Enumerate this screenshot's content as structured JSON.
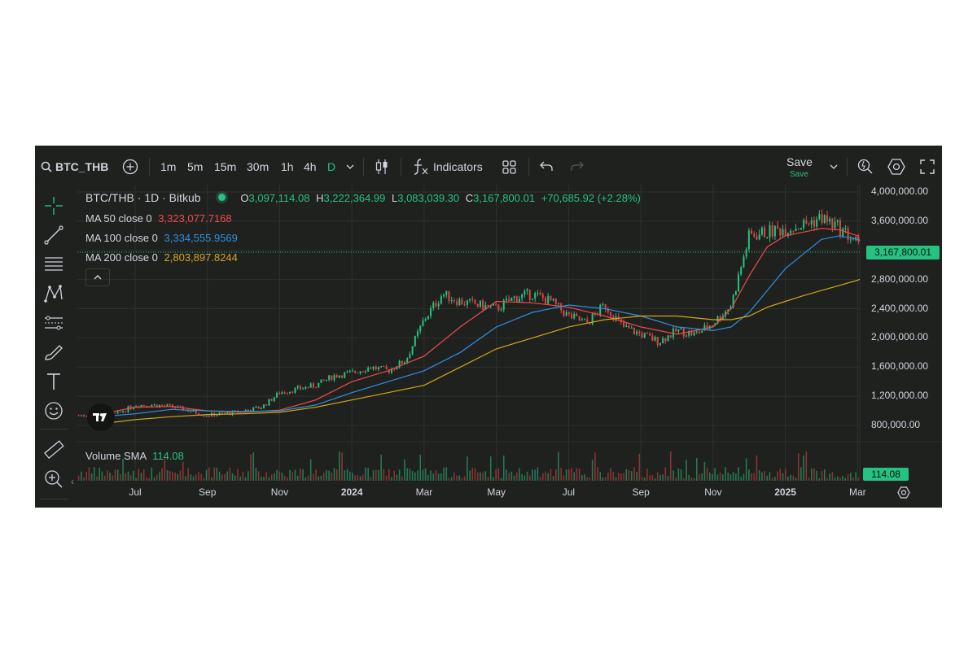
{
  "toolbar": {
    "symbol": "BTC_THB",
    "intervals": [
      "1m",
      "5m",
      "15m",
      "30m",
      "1h",
      "4h",
      "D"
    ],
    "active_interval": "D",
    "indicators_label": "Indicators",
    "save_label": "Save",
    "save_sub_label": "Save"
  },
  "legend": {
    "title": "BTC/THB · 1D · Bitkub",
    "o_key": "O",
    "o_val": "3,097,114.08",
    "h_key": "H",
    "h_val": "3,222,364.99",
    "l_key": "L",
    "l_val": "3,083,039.30",
    "c_key": "C",
    "c_val": "3,167,800.01",
    "change": "+70,685.92 (+2.28%)",
    "ma50_label": "MA 50 close 0",
    "ma50_val": "3,323,077.7168",
    "ma100_label": "MA 100 close 0",
    "ma100_val": "3,334,555.9569",
    "ma200_label": "MA 200 close 0",
    "ma200_val": "2,803,897.8244",
    "volume_label": "Volume SMA",
    "volume_val": "114.08"
  },
  "last_price_label": "3,167,800.01",
  "volume_tag": "114.08",
  "colors": {
    "up": "#26c281",
    "down": "#e0443f",
    "ma50": "#ef4a4a",
    "ma100": "#2f8fdd",
    "ma200": "#d4a41e",
    "bg": "#1f211f"
  },
  "chart_data": {
    "type": "line",
    "instrument": "BTC/THB · 1D · Bitkub",
    "ylim": [
      600000,
      4100000
    ],
    "y_ticks": [
      "4,000,000.00",
      "3,600,000.00",
      "3,200,000.00",
      "2,800,000.00",
      "2,400,000.00",
      "2,000,000.00",
      "1,600,000.00",
      "1,200,000.00",
      "800,000.00"
    ],
    "x_ticks": [
      {
        "label": "Jul",
        "t": 1,
        "bold": false
      },
      {
        "label": "Sep",
        "t": 3,
        "bold": false
      },
      {
        "label": "Nov",
        "t": 5,
        "bold": false
      },
      {
        "label": "2024",
        "t": 7,
        "bold": true
      },
      {
        "label": "Mar",
        "t": 9,
        "bold": false
      },
      {
        "label": "May",
        "t": 11,
        "bold": false
      },
      {
        "label": "Jul",
        "t": 13,
        "bold": false
      },
      {
        "label": "Sep",
        "t": 15,
        "bold": false
      },
      {
        "label": "Nov",
        "t": 17,
        "bold": false
      },
      {
        "label": "2025",
        "t": 19,
        "bold": true
      },
      {
        "label": "Mar",
        "t": 21,
        "bold": false
      }
    ],
    "x_unit": "months since Jun 2023",
    "series": [
      {
        "name": "BTC/THB",
        "color": "#26c281",
        "x": [
          0,
          0.5,
          1,
          1.5,
          2,
          2.5,
          3,
          3.5,
          4,
          4.5,
          5,
          5.5,
          6,
          6.5,
          7,
          7.5,
          8,
          8.5,
          9,
          9.5,
          10,
          10.5,
          11,
          11.5,
          12,
          12.5,
          13,
          13.5,
          14,
          14.5,
          15,
          15.5,
          16,
          16.5,
          17,
          17.5,
          18,
          18.5,
          19,
          19.5,
          20,
          20.5,
          21,
          21.06
        ],
        "values": [
          940000,
          960000,
          1080000,
          1080000,
          1060000,
          1000000,
          940000,
          960000,
          1000000,
          1050000,
          1250000,
          1300000,
          1350000,
          1480000,
          1520000,
          1600000,
          1550000,
          1700000,
          2250000,
          2600000,
          2500000,
          2450000,
          2400000,
          2550000,
          2600000,
          2500000,
          2300000,
          2200000,
          2450000,
          2150000,
          2050000,
          1950000,
          2100000,
          2050000,
          2200000,
          2450000,
          3400000,
          3450000,
          3500000,
          3550000,
          3650000,
          3500000,
          3300000,
          3167800
        ]
      },
      {
        "name": "MA 50",
        "color": "#ef4a4a",
        "x": [
          0,
          1,
          2,
          3,
          4,
          5,
          6,
          7,
          8,
          9,
          10,
          11,
          12,
          13,
          14,
          15,
          16,
          17,
          17.5,
          18,
          18.5,
          19,
          19.5,
          20,
          20.5,
          21,
          21.06
        ],
        "values": [
          950000,
          1050000,
          1060000,
          1000000,
          980000,
          1010000,
          1150000,
          1400000,
          1550000,
          1750000,
          2150000,
          2500000,
          2480000,
          2420000,
          2300000,
          2150000,
          2050000,
          2150000,
          2400000,
          2850000,
          3250000,
          3400000,
          3450000,
          3500000,
          3480000,
          3400000,
          3323078
        ]
      },
      {
        "name": "MA 100",
        "color": "#2f8fdd",
        "x": [
          0,
          1,
          2,
          3,
          4,
          5,
          6,
          7,
          8,
          9,
          10,
          11,
          12,
          13,
          14,
          15,
          16,
          17,
          17.5,
          18,
          18.5,
          19,
          19.5,
          20,
          20.5,
          21,
          21.06
        ],
        "values": [
          920000,
          960000,
          1020000,
          1000000,
          990000,
          1000000,
          1080000,
          1250000,
          1400000,
          1550000,
          1800000,
          2150000,
          2350000,
          2450000,
          2400000,
          2300000,
          2150000,
          2100000,
          2150000,
          2350000,
          2650000,
          2950000,
          3150000,
          3350000,
          3400000,
          3350000,
          3334556
        ]
      },
      {
        "name": "MA 200",
        "color": "#d4a41e",
        "x": [
          0,
          1,
          2,
          3,
          4,
          5,
          6,
          7,
          8,
          9,
          10,
          11,
          12,
          13,
          14,
          15,
          16,
          17,
          17.5,
          18,
          18.5,
          19,
          19.5,
          20,
          20.5,
          21,
          21.06
        ],
        "values": [
          820000,
          880000,
          920000,
          950000,
          960000,
          980000,
          1050000,
          1150000,
          1250000,
          1350000,
          1600000,
          1850000,
          2000000,
          2150000,
          2250000,
          2300000,
          2300000,
          2250000,
          2250000,
          2300000,
          2420000,
          2500000,
          2580000,
          2650000,
          2720000,
          2790000,
          2803898
        ]
      }
    ],
    "volume_sma": 114.08
  }
}
